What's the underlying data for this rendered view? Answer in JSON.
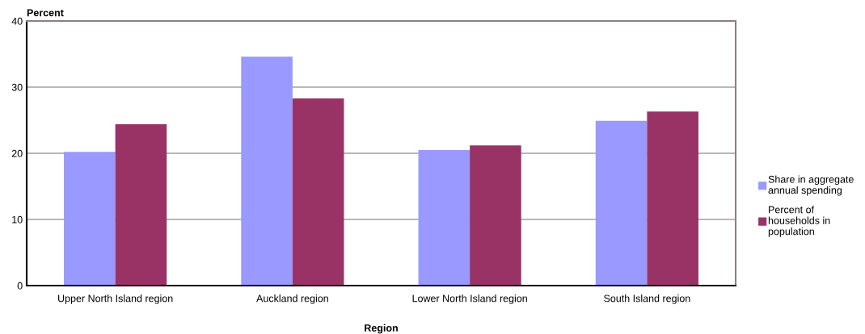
{
  "chart_data": {
    "type": "bar",
    "ylabel": "Percent",
    "xlabel": "Region",
    "categories": [
      "Upper North Island region",
      "Auckland region",
      "Lower North Island region",
      "South Island region"
    ],
    "series": [
      {
        "name": "Share in aggregate\nannual spending",
        "color": "#9999ff",
        "values": [
          20.2,
          34.6,
          20.5,
          24.9
        ]
      },
      {
        "name": "Percent of\nhouseholds in\npopulation",
        "color": "#993366",
        "values": [
          24.4,
          28.3,
          21.2,
          26.3
        ]
      }
    ],
    "ylim": [
      0,
      40
    ],
    "yticks": [
      0,
      10,
      20,
      30,
      40
    ],
    "grid": "y",
    "legend": "right"
  }
}
